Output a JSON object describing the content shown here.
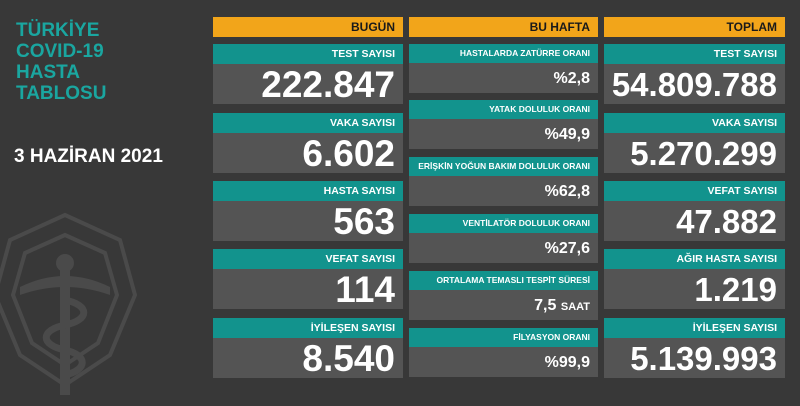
{
  "title": {
    "lines": [
      "TÜRKİYE",
      "COVID-19",
      "HASTA",
      "TABLOSU"
    ],
    "date": "3 HAZİRAN 2021"
  },
  "columns": {
    "today": {
      "header": "BUGÜN",
      "cards": [
        {
          "label": "TEST SAYISI",
          "value": "222.847"
        },
        {
          "label": "VAKA SAYISI",
          "value": "6.602"
        },
        {
          "label": "HASTA SAYISI",
          "value": "563"
        },
        {
          "label": "VEFAT SAYISI",
          "value": "114"
        },
        {
          "label": "İYİLEŞEN SAYISI",
          "value": "8.540"
        }
      ]
    },
    "week": {
      "header": "BU HAFTA",
      "cards": [
        {
          "label": "HASTALARDA ZATÜRRE ORANI",
          "value": "%2,8"
        },
        {
          "label": "YATAK DOLULUK ORANI",
          "value": "%49,9"
        },
        {
          "label": "ERİŞKİN YOĞUN BAKIM DOLULUK ORANI",
          "value": "%62,8"
        },
        {
          "label": "VENTİLATÖR DOLULUK ORANI",
          "value": "%27,6"
        },
        {
          "label": "ORTALAMA TEMASLI TESPİT SÜRESİ",
          "value": "7,5",
          "unit": "SAAT"
        },
        {
          "label": "FİLYASYON ORANI",
          "value": "%99,9"
        }
      ]
    },
    "total": {
      "header": "TOPLAM",
      "cards": [
        {
          "label": "TEST SAYISI",
          "value": "54.809.788"
        },
        {
          "label": "VAKA SAYISI",
          "value": "5.270.299"
        },
        {
          "label": "VEFAT SAYISI",
          "value": "47.882"
        },
        {
          "label": "AĞIR HASTA SAYISI",
          "value": "1.219"
        },
        {
          "label": "İYİLEŞEN SAYISI",
          "value": "5.139.993"
        }
      ]
    }
  },
  "colors": {
    "background": "#383838",
    "accent_teal": "#12938d",
    "title_teal": "#1aa6a0",
    "header_orange": "#f2a51a",
    "value_bg": "#545454"
  },
  "icons": {
    "emblem": "health-ministry-emblem-icon"
  }
}
